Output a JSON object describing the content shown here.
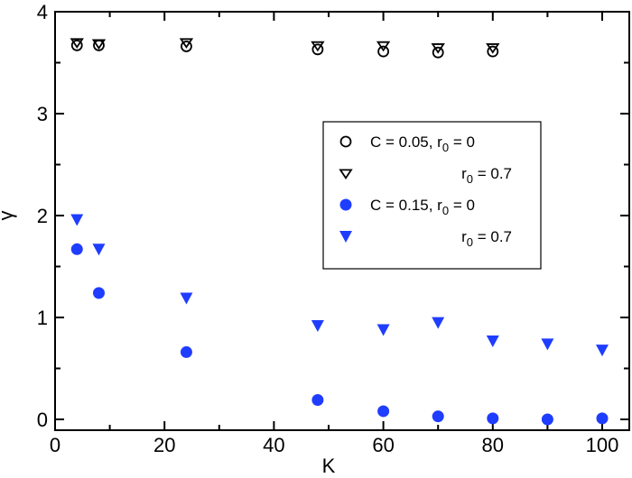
{
  "chart_data": {
    "type": "scatter",
    "title": "",
    "xlabel": "K",
    "ylabel": "γ",
    "xlim": [
      0,
      105
    ],
    "ylim": [
      -0.1,
      4
    ],
    "xticks": [
      0,
      20,
      40,
      60,
      80,
      100
    ],
    "yticks": [
      0,
      1,
      2,
      3,
      4
    ],
    "grid": false,
    "legend_position": "center-right",
    "series": [
      {
        "name": "C = 0.05, r0 = 0",
        "marker": "open-circle",
        "color": "#000000",
        "x": [
          4,
          8,
          24,
          48,
          60,
          70,
          80
        ],
        "y": [
          3.67,
          3.67,
          3.66,
          3.63,
          3.61,
          3.6,
          3.61
        ]
      },
      {
        "name": "r0 = 0.7",
        "marker": "open-triangle-down",
        "color": "#000000",
        "x": [
          4,
          8,
          24,
          48,
          60,
          70,
          80
        ],
        "y": [
          3.7,
          3.69,
          3.7,
          3.67,
          3.67,
          3.65,
          3.65
        ]
      },
      {
        "name": "C = 0.15, r0 = 0",
        "marker": "filled-circle",
        "color": "#1f3dff",
        "x": [
          4,
          8,
          24,
          48,
          60,
          70,
          80,
          90,
          100
        ],
        "y": [
          1.67,
          1.24,
          0.66,
          0.19,
          0.08,
          0.03,
          0.01,
          0.0,
          0.01
        ]
      },
      {
        "name": "r0 = 0.7",
        "marker": "filled-triangle-down",
        "color": "#1f3dff",
        "x": [
          4,
          8,
          24,
          48,
          60,
          70,
          80,
          90,
          100
        ],
        "y": [
          1.96,
          1.67,
          1.19,
          0.92,
          0.88,
          0.95,
          0.77,
          0.74,
          0.68
        ]
      }
    ],
    "legend": [
      {
        "prefix": "C = 0.05, r",
        "sub": "0",
        "suffix": " = 0"
      },
      {
        "prefix": "r",
        "sub": "0",
        "suffix": " = 0.7"
      },
      {
        "prefix": "C = 0.15, r",
        "sub": "0",
        "suffix": " = 0"
      },
      {
        "prefix": "r",
        "sub": "0",
        "suffix": " = 0.7"
      }
    ]
  }
}
